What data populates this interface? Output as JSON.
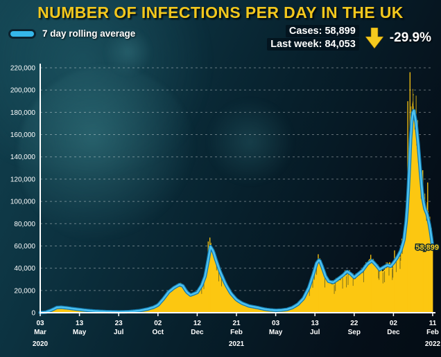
{
  "stats": {
    "cases_label": "Cases:",
    "cases_value": "58,899",
    "last_week_label": "Last week:",
    "last_week_value": "84,053",
    "change_percent": "-29.9%"
  },
  "chart_data": {
    "type": "bar",
    "title": "NUMBER OF INFECTIONS PER DAY IN THE UK",
    "legend": [
      "7 day rolling average"
    ],
    "xlabel": "",
    "ylabel": "",
    "y_axis": {
      "min": 0,
      "max": 220000,
      "step": 20000
    },
    "x_range_days": 710,
    "x_ticks": [
      {
        "day": 0,
        "line1": "03",
        "line2": "Mar",
        "year": "2020"
      },
      {
        "day": 71,
        "line1": "13",
        "line2": "May"
      },
      {
        "day": 142,
        "line1": "23",
        "line2": "Jul"
      },
      {
        "day": 213,
        "line1": "02",
        "line2": "Oct"
      },
      {
        "day": 284,
        "line1": "12",
        "line2": "Dec"
      },
      {
        "day": 355,
        "line1": "21",
        "line2": "Feb",
        "year": "2021"
      },
      {
        "day": 426,
        "line1": "03",
        "line2": "May"
      },
      {
        "day": 497,
        "line1": "13",
        "line2": "Jul"
      },
      {
        "day": 568,
        "line1": "22",
        "line2": "Sep"
      },
      {
        "day": 639,
        "line1": "02",
        "line2": "Dec"
      },
      {
        "day": 710,
        "line1": "11",
        "line2": "Feb",
        "year": "2022"
      }
    ],
    "rolling_average_points": [
      [
        0,
        100
      ],
      [
        10,
        500
      ],
      [
        20,
        2300
      ],
      [
        30,
        4700
      ],
      [
        38,
        4950
      ],
      [
        50,
        4300
      ],
      [
        60,
        3600
      ],
      [
        71,
        2900
      ],
      [
        85,
        2100
      ],
      [
        100,
        1450
      ],
      [
        120,
        950
      ],
      [
        142,
        680
      ],
      [
        160,
        950
      ],
      [
        180,
        1900
      ],
      [
        195,
        3400
      ],
      [
        205,
        4900
      ],
      [
        213,
        6900
      ],
      [
        222,
        12000
      ],
      [
        232,
        18500
      ],
      [
        242,
        22500
      ],
      [
        252,
        25300
      ],
      [
        258,
        24200
      ],
      [
        265,
        18700
      ],
      [
        272,
        15900
      ],
      [
        284,
        18200
      ],
      [
        292,
        24500
      ],
      [
        298,
        32500
      ],
      [
        303,
        45000
      ],
      [
        308,
        59500
      ],
      [
        313,
        55500
      ],
      [
        318,
        47500
      ],
      [
        325,
        37500
      ],
      [
        335,
        26000
      ],
      [
        345,
        17500
      ],
      [
        355,
        11800
      ],
      [
        365,
        8600
      ],
      [
        378,
        6100
      ],
      [
        392,
        4800
      ],
      [
        405,
        3300
      ],
      [
        415,
        2600
      ],
      [
        426,
        2150
      ],
      [
        436,
        2350
      ],
      [
        446,
        3000
      ],
      [
        456,
        4600
      ],
      [
        466,
        7600
      ],
      [
        476,
        12800
      ],
      [
        486,
        22500
      ],
      [
        494,
        34500
      ],
      [
        500,
        44500
      ],
      [
        505,
        47800
      ],
      [
        510,
        41500
      ],
      [
        516,
        33000
      ],
      [
        522,
        28200
      ],
      [
        530,
        27200
      ],
      [
        540,
        30800
      ],
      [
        548,
        33800
      ],
      [
        555,
        37300
      ],
      [
        562,
        34800
      ],
      [
        568,
        31800
      ],
      [
        575,
        34800
      ],
      [
        583,
        38000
      ],
      [
        592,
        44000
      ],
      [
        600,
        46800
      ],
      [
        607,
        43200
      ],
      [
        614,
        38800
      ],
      [
        621,
        40800
      ],
      [
        628,
        42800
      ],
      [
        634,
        41800
      ],
      [
        639,
        44800
      ],
      [
        646,
        49800
      ],
      [
        652,
        55500
      ],
      [
        658,
        65500
      ],
      [
        663,
        86000
      ],
      [
        667,
        121000
      ],
      [
        670,
        156000
      ],
      [
        673,
        178500
      ],
      [
        676,
        181500
      ],
      [
        680,
        170500
      ],
      [
        684,
        150500
      ],
      [
        688,
        125500
      ],
      [
        692,
        103500
      ],
      [
        696,
        93500
      ],
      [
        700,
        88500
      ],
      [
        704,
        79500
      ],
      [
        707,
        70500
      ],
      [
        710,
        58899
      ]
    ],
    "bar_spikes": [
      [
        304,
        64000
      ],
      [
        307,
        67500
      ],
      [
        503,
        52500
      ],
      [
        598,
        52000
      ],
      [
        641,
        56000
      ],
      [
        665,
        190000
      ],
      [
        669,
        216000
      ],
      [
        674,
        188000
      ],
      [
        692,
        128000
      ],
      [
        701,
        117000
      ]
    ],
    "end_annotation": {
      "text": "58,899",
      "day": 710,
      "value": 58899
    },
    "colors": {
      "bars": "#fcc711",
      "line": "#4ec1f0",
      "line_edge": "#1079ad",
      "axis": "#ffffff",
      "grid": "rgba(255,255,255,0.38)",
      "title": "#f2c71d",
      "annotation": "#ffd21f",
      "arrow": "#f5c91e"
    }
  }
}
